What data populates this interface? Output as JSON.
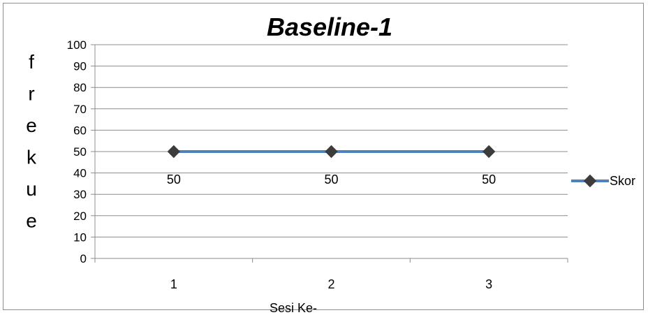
{
  "chart_data": {
    "type": "line",
    "title": "Baseline-1",
    "xlabel": "Sesi Ke-",
    "ylabel": "frekue",
    "categories": [
      "1",
      "2",
      "3"
    ],
    "ylim": [
      0,
      100
    ],
    "yticks": [
      0,
      10,
      20,
      30,
      40,
      50,
      60,
      70,
      80,
      90,
      100
    ],
    "grid": true,
    "legend_position": "right",
    "series": [
      {
        "name": "Skor",
        "values": [
          50,
          50,
          50
        ],
        "color": "#4f81bd",
        "marker_color": "#3c3c3c"
      }
    ],
    "data_labels": [
      "50",
      "50",
      "50"
    ]
  }
}
